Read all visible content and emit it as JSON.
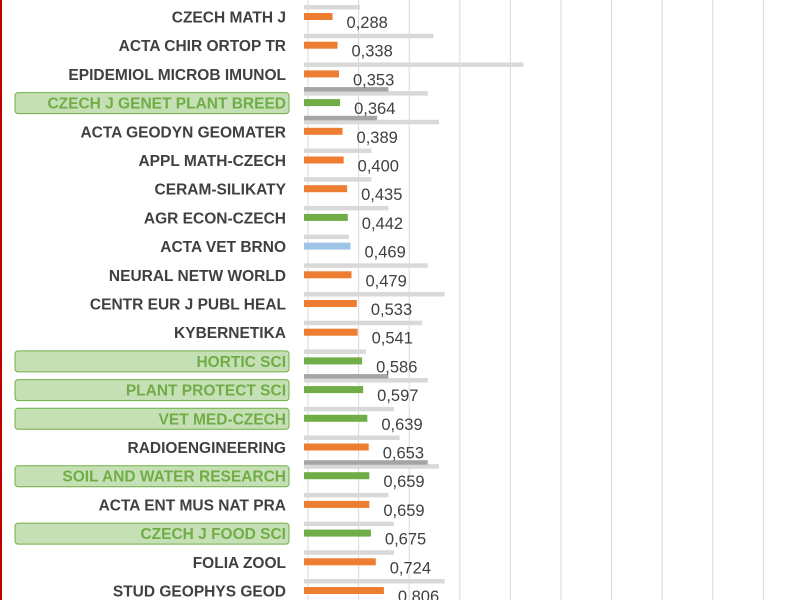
{
  "colors": {
    "orange": "#ED7D31",
    "green": "#70AD47",
    "blue": "#9DC3E6",
    "gray_light": "#D9D9D9",
    "gray_dark": "#A5A5A5",
    "highlight_fill": "#C5E0B4",
    "highlight_border": "#70AD47",
    "gridline": "#D9D9D9",
    "left_border": "#C00000"
  },
  "chart_data": {
    "type": "bar",
    "orientation": "horizontal",
    "grid": true,
    "categories": [
      "CZECH MATH J",
      "ACTA CHIR ORTOP TR",
      "EPIDEMIOL MICROB IMUNOL",
      "CZECH J GENET PLANT BREED",
      "ACTA GEODYN GEOMATER",
      "APPL MATH-CZECH",
      "CERAM-SILIKATY",
      "AGR ECON-CZECH",
      "ACTA VET BRNO",
      "NEURAL NETW WORLD",
      "CENTR EUR J PUBL HEAL",
      "KYBERNETIKA",
      "HORTIC SCI",
      "PLANT PROTECT SCI",
      "VET MED-CZECH",
      "RADIOENGINEERING",
      "SOIL AND WATER RESEARCH",
      "ACTA ENT MUS NAT PRA",
      "CZECH J FOOD SCI",
      "FOLIA ZOOL",
      "STUD  GEOPHYS GEOD"
    ],
    "value_labels": [
      "0,288",
      "0,338",
      "0,353",
      "0,364",
      "0,389",
      "0,400",
      "0,435",
      "0,442",
      "0,469",
      "0,479",
      "0,533",
      "0,541",
      "0,586",
      "0,597",
      "0,639",
      "0,653",
      "0,659",
      "0,659",
      "0,675",
      "0,724",
      "0,806"
    ],
    "values": [
      0.288,
      0.338,
      0.353,
      0.364,
      0.389,
      0.4,
      0.435,
      0.442,
      0.469,
      0.479,
      0.533,
      0.541,
      0.586,
      0.597,
      0.639,
      0.653,
      0.659,
      0.659,
      0.675,
      0.724,
      0.806
    ],
    "bar_colors": [
      "orange",
      "orange",
      "orange",
      "green",
      "orange",
      "orange",
      "orange",
      "green",
      "blue",
      "orange",
      "orange",
      "orange",
      "green",
      "green",
      "green",
      "orange",
      "green",
      "orange",
      "green",
      "orange",
      "orange"
    ],
    "highlighted": [
      false,
      false,
      false,
      true,
      false,
      false,
      false,
      false,
      false,
      false,
      false,
      false,
      true,
      true,
      true,
      false,
      true,
      false,
      true,
      false,
      false
    ],
    "background_series": [
      {
        "name": "",
        "color": "gray_light",
        "values": [
          0.5,
          1.15,
          1.95,
          1.1,
          1.2,
          0.6,
          0.6,
          0.75,
          0.4,
          1.1,
          1.25,
          1.05,
          0.55,
          1.1,
          0.8,
          0.85,
          1.2,
          0.75,
          0.8,
          0.8,
          1.25
        ]
      },
      {
        "name": "",
        "color": "gray_dark",
        "values": [
          0,
          0,
          0,
          0.75,
          0.65,
          0,
          0,
          0,
          0,
          0,
          0,
          0,
          0,
          0.75,
          0,
          0,
          1.1,
          0,
          0,
          0,
          0
        ]
      }
    ]
  }
}
